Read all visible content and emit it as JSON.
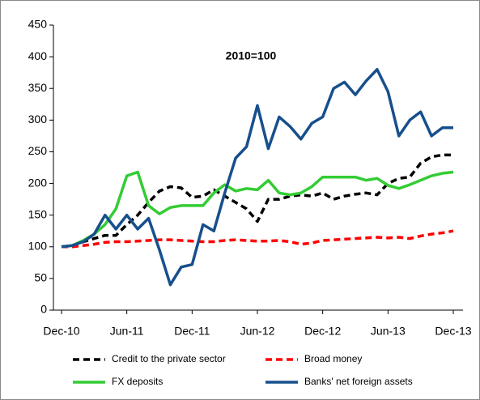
{
  "chart_data": {
    "type": "line",
    "annotation": "2010=100",
    "categories": [
      "Dec-10",
      null,
      null,
      null,
      null,
      null,
      "Jun-11",
      null,
      null,
      null,
      null,
      null,
      "Dec-11",
      null,
      null,
      null,
      null,
      null,
      "Jun-12",
      null,
      null,
      null,
      null,
      null,
      "Dec-12",
      null,
      null,
      null,
      null,
      null,
      "Jun-13",
      null,
      null,
      null,
      null,
      null,
      "Dec-13"
    ],
    "ylim": [
      0,
      450
    ],
    "yticks": [
      0,
      50,
      100,
      150,
      200,
      250,
      300,
      350,
      400,
      450
    ],
    "series": [
      {
        "name": "Credit to the private sector",
        "color": "#000000",
        "dash": true,
        "values": [
          100,
          102,
          108,
          113,
          118,
          118,
          135,
          150,
          170,
          188,
          195,
          193,
          178,
          180,
          190,
          180,
          170,
          160,
          140,
          175,
          175,
          180,
          182,
          180,
          185,
          175,
          180,
          183,
          185,
          182,
          200,
          208,
          210,
          232,
          242,
          245,
          245
        ]
      },
      {
        "name": "Broad money",
        "color": "#ff0000",
        "dash": true,
        "values": [
          100,
          100,
          102,
          104,
          107,
          108,
          108,
          109,
          110,
          111,
          111,
          110,
          109,
          108,
          108,
          110,
          111,
          110,
          109,
          109,
          110,
          108,
          104,
          106,
          110,
          111,
          112,
          113,
          114,
          115,
          114,
          115,
          113,
          117,
          120,
          122,
          125
        ]
      },
      {
        "name": "FX deposits",
        "color": "#33cc33",
        "dash": false,
        "values": [
          100,
          102,
          110,
          120,
          135,
          160,
          212,
          218,
          165,
          152,
          162,
          165,
          165,
          165,
          185,
          198,
          188,
          192,
          190,
          205,
          185,
          182,
          185,
          195,
          210,
          210,
          210,
          210,
          205,
          208,
          197,
          192,
          198,
          205,
          212,
          216,
          218
        ]
      },
      {
        "name": "Banks' net foreign assets",
        "color": "#174f8c",
        "dash": false,
        "values": [
          100,
          102,
          108,
          120,
          150,
          128,
          150,
          128,
          145,
          95,
          40,
          68,
          72,
          135,
          125,
          185,
          240,
          258,
          323,
          255,
          305,
          290,
          270,
          295,
          305,
          350,
          360,
          340,
          362,
          380,
          345,
          275,
          300,
          313,
          275,
          288,
          288
        ]
      }
    ]
  }
}
